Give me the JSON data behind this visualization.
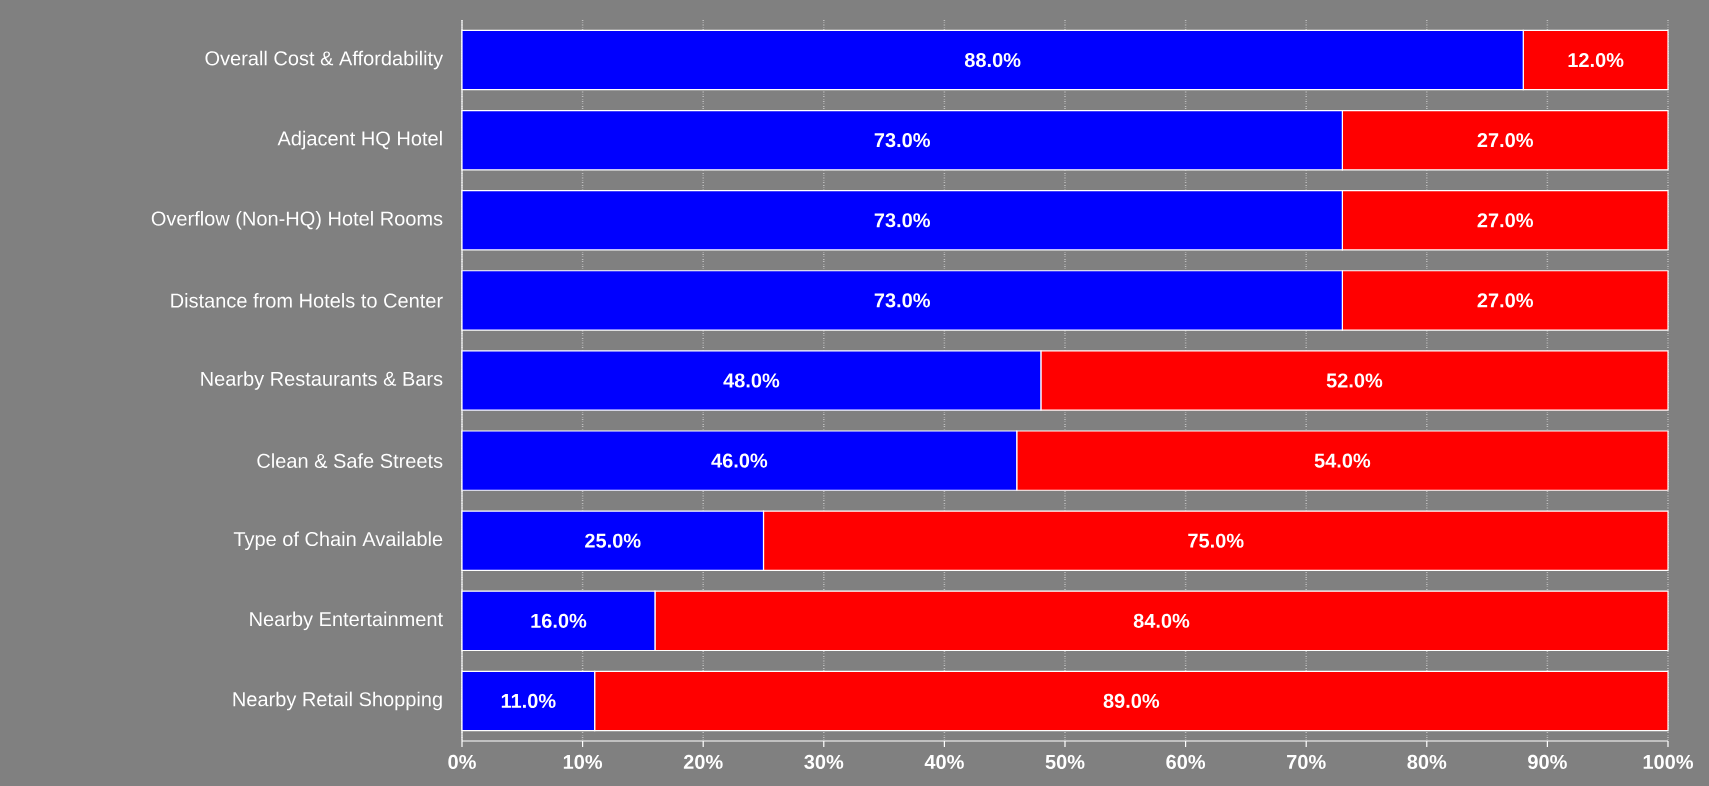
{
  "chart_data": {
    "type": "bar",
    "orientation": "horizontal",
    "stacked": true,
    "categories": [
      "Overall Cost & Affordability",
      "Adjacent HQ Hotel",
      "Overflow (Non-HQ) Hotel Rooms",
      "Distance from Hotels to Center",
      "Nearby Restaurants & Bars",
      "Clean & Safe Streets",
      "Type of Chain Available",
      "Nearby Entertainment",
      "Nearby Retail Shopping"
    ],
    "series": [
      {
        "color": "#0000ff",
        "values": [
          88,
          73,
          73,
          73,
          48,
          46,
          25,
          16,
          11
        ],
        "value_labels": [
          "88.0%",
          "73.0%",
          "73.0%",
          "73.0%",
          "48.0%",
          "46.0%",
          "25.0%",
          "16.0%",
          "11.0%"
        ]
      },
      {
        "color": "#ff0000",
        "values": [
          12,
          27,
          27,
          27,
          52,
          54,
          75,
          84,
          89
        ],
        "value_labels": [
          "12.0%",
          "27.0%",
          "27.0%",
          "27.0%",
          "52.0%",
          "54.0%",
          "75.0%",
          "84.0%",
          "89.0%"
        ]
      }
    ],
    "xlim": [
      0,
      100
    ],
    "xticks": [
      {
        "value": 0,
        "label": "0%"
      },
      {
        "value": 10,
        "label": "10%"
      },
      {
        "value": 20,
        "label": "20%"
      },
      {
        "value": 30,
        "label": "30%"
      },
      {
        "value": 40,
        "label": "40%"
      },
      {
        "value": 50,
        "label": "50%"
      },
      {
        "value": 60,
        "label": "60%"
      },
      {
        "value": 70,
        "label": "70%"
      },
      {
        "value": 80,
        "label": "80%"
      },
      {
        "value": 90,
        "label": "90%"
      },
      {
        "value": 100,
        "label": "100%"
      }
    ],
    "grid": "x"
  }
}
